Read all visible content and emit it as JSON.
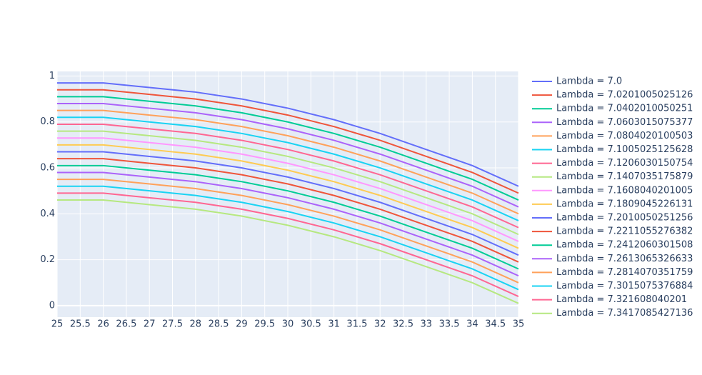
{
  "chart_data": {
    "type": "line",
    "x": [
      25,
      26,
      27,
      28,
      29,
      30,
      31,
      32,
      33,
      34,
      35
    ],
    "xlim": [
      25,
      35
    ],
    "xticks": [
      25,
      25.5,
      26,
      26.5,
      27,
      27.5,
      28,
      28.5,
      29,
      29.5,
      30,
      30.5,
      31,
      31.5,
      32,
      32.5,
      33,
      33.5,
      34,
      34.5,
      35
    ],
    "ylim": [
      -0.05,
      1.02
    ],
    "yticks": [
      0,
      0.2,
      0.4,
      0.6,
      0.8,
      1
    ],
    "grid": true,
    "legend": "right",
    "series": [
      {
        "name": "Lambda = 7.0",
        "color": "#636efa",
        "values": [
          0.97,
          0.97,
          0.95,
          0.93,
          0.9,
          0.86,
          0.81,
          0.75,
          0.68,
          0.61,
          0.52
        ]
      },
      {
        "name": "Lambda = 7.0201005025126",
        "color": "#ef553b",
        "values": [
          0.94,
          0.94,
          0.92,
          0.9,
          0.87,
          0.83,
          0.78,
          0.72,
          0.65,
          0.58,
          0.49
        ]
      },
      {
        "name": "Lambda = 7.0402010050251",
        "color": "#00cc96",
        "values": [
          0.91,
          0.91,
          0.89,
          0.87,
          0.84,
          0.8,
          0.75,
          0.69,
          0.62,
          0.55,
          0.46
        ]
      },
      {
        "name": "Lambda = 7.0603015075377",
        "color": "#ab63fa",
        "values": [
          0.88,
          0.88,
          0.86,
          0.84,
          0.81,
          0.77,
          0.72,
          0.66,
          0.59,
          0.52,
          0.43
        ]
      },
      {
        "name": "Lambda = 7.0804020100503",
        "color": "#ffa15a",
        "values": [
          0.85,
          0.85,
          0.83,
          0.81,
          0.78,
          0.74,
          0.69,
          0.63,
          0.56,
          0.49,
          0.4
        ]
      },
      {
        "name": "Lambda = 7.1005025125628",
        "color": "#19d3f3",
        "values": [
          0.82,
          0.82,
          0.8,
          0.78,
          0.75,
          0.71,
          0.66,
          0.6,
          0.53,
          0.46,
          0.37
        ]
      },
      {
        "name": "Lambda = 7.1206030150754",
        "color": "#ff6692",
        "values": [
          0.79,
          0.79,
          0.77,
          0.75,
          0.72,
          0.68,
          0.63,
          0.57,
          0.5,
          0.43,
          0.34
        ]
      },
      {
        "name": "Lambda = 7.1407035175879",
        "color": "#b6e880",
        "values": [
          0.76,
          0.76,
          0.74,
          0.72,
          0.69,
          0.65,
          0.6,
          0.54,
          0.47,
          0.4,
          0.31
        ]
      },
      {
        "name": "Lambda = 7.1608040201005",
        "color": "#ff97ff",
        "values": [
          0.73,
          0.73,
          0.71,
          0.69,
          0.66,
          0.62,
          0.57,
          0.51,
          0.44,
          0.37,
          0.28
        ]
      },
      {
        "name": "Lambda = 7.1809045226131",
        "color": "#fecb52",
        "values": [
          0.7,
          0.7,
          0.68,
          0.66,
          0.63,
          0.59,
          0.54,
          0.48,
          0.41,
          0.34,
          0.25
        ]
      },
      {
        "name": "Lambda = 7.2010050251256",
        "color": "#636efa",
        "values": [
          0.67,
          0.67,
          0.65,
          0.63,
          0.6,
          0.56,
          0.51,
          0.45,
          0.38,
          0.31,
          0.22
        ]
      },
      {
        "name": "Lambda = 7.2211055276382",
        "color": "#ef553b",
        "values": [
          0.64,
          0.64,
          0.62,
          0.6,
          0.57,
          0.53,
          0.48,
          0.42,
          0.35,
          0.28,
          0.19
        ]
      },
      {
        "name": "Lambda = 7.2412060301508",
        "color": "#00cc96",
        "values": [
          0.61,
          0.61,
          0.59,
          0.57,
          0.54,
          0.5,
          0.45,
          0.39,
          0.32,
          0.25,
          0.16
        ]
      },
      {
        "name": "Lambda = 7.2613065326633",
        "color": "#ab63fa",
        "values": [
          0.58,
          0.58,
          0.56,
          0.54,
          0.51,
          0.47,
          0.42,
          0.36,
          0.29,
          0.22,
          0.13
        ]
      },
      {
        "name": "Lambda = 7.2814070351759",
        "color": "#ffa15a",
        "values": [
          0.55,
          0.55,
          0.53,
          0.51,
          0.48,
          0.44,
          0.39,
          0.33,
          0.26,
          0.19,
          0.1
        ]
      },
      {
        "name": "Lambda = 7.3015075376884",
        "color": "#19d3f3",
        "values": [
          0.52,
          0.52,
          0.5,
          0.48,
          0.45,
          0.41,
          0.36,
          0.3,
          0.23,
          0.16,
          0.07
        ]
      },
      {
        "name": "Lambda = 7.321608040201",
        "color": "#ff6692",
        "values": [
          0.49,
          0.49,
          0.47,
          0.45,
          0.42,
          0.38,
          0.33,
          0.27,
          0.2,
          0.13,
          0.04
        ]
      },
      {
        "name": "Lambda = 7.3417085427136",
        "color": "#b6e880",
        "values": [
          0.46,
          0.46,
          0.44,
          0.42,
          0.39,
          0.35,
          0.3,
          0.24,
          0.17,
          0.1,
          0.01
        ]
      }
    ]
  }
}
